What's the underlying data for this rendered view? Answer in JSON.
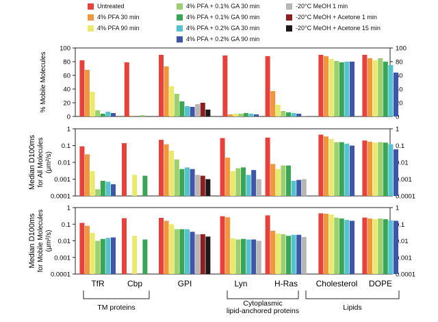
{
  "legend": [
    {
      "name": "Untreated",
      "color": "#e8403a"
    },
    {
      "name": "4% PFA 30 min",
      "color": "#f0963c"
    },
    {
      "name": "4% PFA 90 min",
      "color": "#e9ea6c"
    },
    {
      "name": "4% PFA + 0.1% GA 30 min",
      "color": "#9ccf6e"
    },
    {
      "name": "4% PFA + 0.1% GA 90 min",
      "color": "#3aa655"
    },
    {
      "name": "4% PFA + 0.2% GA 30 min",
      "color": "#55c3cf"
    },
    {
      "name": "4% PFA + 0.2% GA 90 min",
      "color": "#3f55a8"
    },
    {
      "name": "-20°C MeOH 1 min",
      "color": "#b8b6b5"
    },
    {
      "name": "-20°C MeOH + Acetone 1 min",
      "color": "#8e1f21"
    },
    {
      "name": "-20°C MeOH + Acetone 15 min",
      "color": "#1e1719"
    }
  ],
  "chart_data": {
    "type": "bar",
    "categories": [
      "TfR",
      "Cbp",
      "GPI",
      "Lyn",
      "H-Ras",
      "Cholesterol",
      "DOPE"
    ],
    "groups": [
      {
        "label": "TM proteins",
        "categories": [
          "TfR",
          "Cbp"
        ]
      },
      {
        "label": "Cytoplasmic\nlipid-anchored proteins",
        "categories": [
          "Lyn",
          "H-Ras"
        ]
      },
      {
        "label": "Lipids",
        "categories": [
          "Cholesterol",
          "DOPE"
        ]
      }
    ],
    "panels": [
      {
        "ylabel": [
          "% Mobile Molecules"
        ],
        "scale": "linear",
        "ylim": [
          0,
          100
        ],
        "ticks": [
          0,
          20,
          40,
          60,
          80,
          100
        ],
        "tick_labels": [
          "0",
          "20",
          "40",
          "60",
          "80",
          "100"
        ],
        "values": {
          "TfR": [
            82,
            68,
            36,
            9,
            4,
            7,
            5,
            null,
            null,
            null
          ],
          "Cbp": [
            79,
            1,
            null,
            2,
            null,
            null,
            null,
            null,
            null,
            null
          ],
          "GPI": [
            90,
            73,
            44,
            33,
            22,
            15,
            14,
            18,
            20,
            10
          ],
          "Lyn": [
            89,
            3,
            4,
            4,
            5,
            4,
            3,
            null,
            null,
            null
          ],
          "H-Ras": [
            88,
            37,
            17,
            8,
            6,
            5,
            4,
            1,
            null,
            null
          ],
          "Cholesterol": [
            90,
            88,
            84,
            81,
            79,
            80,
            80,
            null,
            null,
            null
          ],
          "DOPE": [
            90,
            85,
            82,
            85,
            80,
            75,
            64,
            null,
            null,
            null
          ]
        }
      },
      {
        "ylabel": [
          "Median D100ms",
          "for All Molecules",
          "(μm²/s)"
        ],
        "scale": "log",
        "ylim": [
          0.0001,
          1
        ],
        "ticks": [
          0.0001,
          0.001,
          0.01,
          0.1,
          1
        ],
        "tick_labels": [
          "0.0001",
          "0.001",
          "0.01",
          "0.1",
          "1"
        ],
        "values": {
          "TfR": [
            0.09,
            0.03,
            0.003,
            0.00025,
            0.0008,
            0.0007,
            0.0005,
            null,
            null,
            null
          ],
          "Cbp": [
            0.14,
            null,
            0.0018,
            null,
            0.0016,
            null,
            null,
            null,
            null,
            null
          ],
          "GPI": [
            0.22,
            0.12,
            0.05,
            0.015,
            0.004,
            0.005,
            0.004,
            0.0018,
            0.0016,
            0.001
          ],
          "Lyn": [
            0.28,
            0.019,
            0.003,
            0.0045,
            0.005,
            0.0018,
            0.0035,
            0.001,
            null,
            null
          ],
          "H-Ras": [
            0.3,
            0.008,
            0.004,
            0.0065,
            0.0065,
            0.0008,
            0.0009,
            0.001,
            null,
            null
          ],
          "Cholesterol": [
            0.45,
            0.35,
            0.25,
            0.16,
            0.16,
            0.13,
            0.1,
            null,
            null,
            null
          ],
          "DOPE": [
            0.2,
            0.17,
            0.15,
            0.16,
            0.15,
            0.12,
            0.06,
            null,
            null,
            null
          ]
        }
      },
      {
        "ylabel": [
          "Median D100ms",
          "for Mobile Molecules",
          "(μm²/s)"
        ],
        "scale": "log",
        "ylim": [
          0.0001,
          1
        ],
        "ticks": [
          0.0001,
          0.001,
          0.01,
          0.1,
          1
        ],
        "tick_labels": [
          "0.0001",
          "0.001",
          "0.01",
          "0.1",
          "1"
        ],
        "values": {
          "TfR": [
            0.12,
            0.08,
            0.03,
            0.01,
            0.013,
            0.015,
            0.016,
            null,
            null,
            null
          ],
          "Cbp": [
            0.23,
            null,
            0.02,
            null,
            0.012,
            null,
            null,
            null,
            null,
            null
          ],
          "GPI": [
            0.24,
            0.16,
            0.1,
            0.05,
            0.05,
            0.05,
            0.035,
            0.025,
            0.025,
            0.018
          ],
          "Lyn": [
            0.3,
            0.26,
            0.014,
            0.012,
            0.013,
            0.012,
            0.012,
            0.01,
            null,
            null
          ],
          "H-Ras": [
            0.34,
            0.04,
            0.027,
            0.025,
            0.02,
            0.023,
            0.023,
            0.017,
            null,
            null
          ],
          "Cholesterol": [
            0.45,
            0.43,
            0.38,
            0.25,
            0.22,
            0.18,
            0.16,
            null,
            null,
            null
          ],
          "DOPE": [
            0.25,
            0.22,
            0.2,
            0.22,
            0.2,
            0.17,
            0.16,
            null,
            null,
            null
          ]
        }
      }
    ]
  }
}
